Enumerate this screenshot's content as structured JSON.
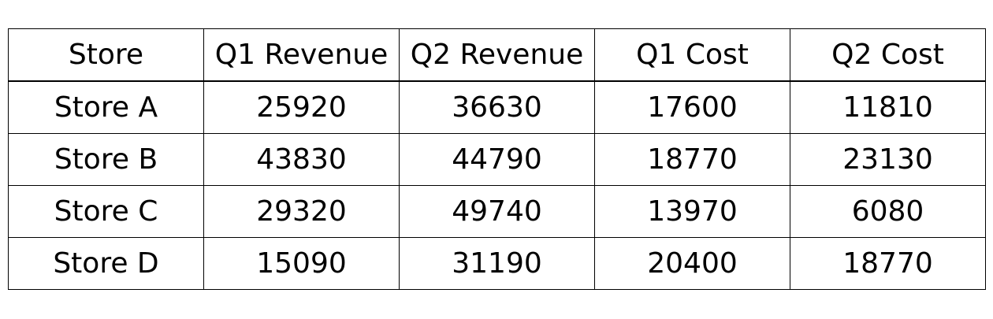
{
  "chart_data": {
    "type": "table",
    "columns": [
      "Store",
      "Q1 Revenue",
      "Q2 Revenue",
      "Q1 Cost",
      "Q2 Cost"
    ],
    "rows": [
      [
        "Store A",
        "25920",
        "36630",
        "17600",
        "11810"
      ],
      [
        "Store B",
        "43830",
        "44790",
        "18770",
        "23130"
      ],
      [
        "Store C",
        "29320",
        "49740",
        "13970",
        "6080"
      ],
      [
        "Store D",
        "15090",
        "31190",
        "20400",
        "18770"
      ]
    ],
    "grid": true
  }
}
